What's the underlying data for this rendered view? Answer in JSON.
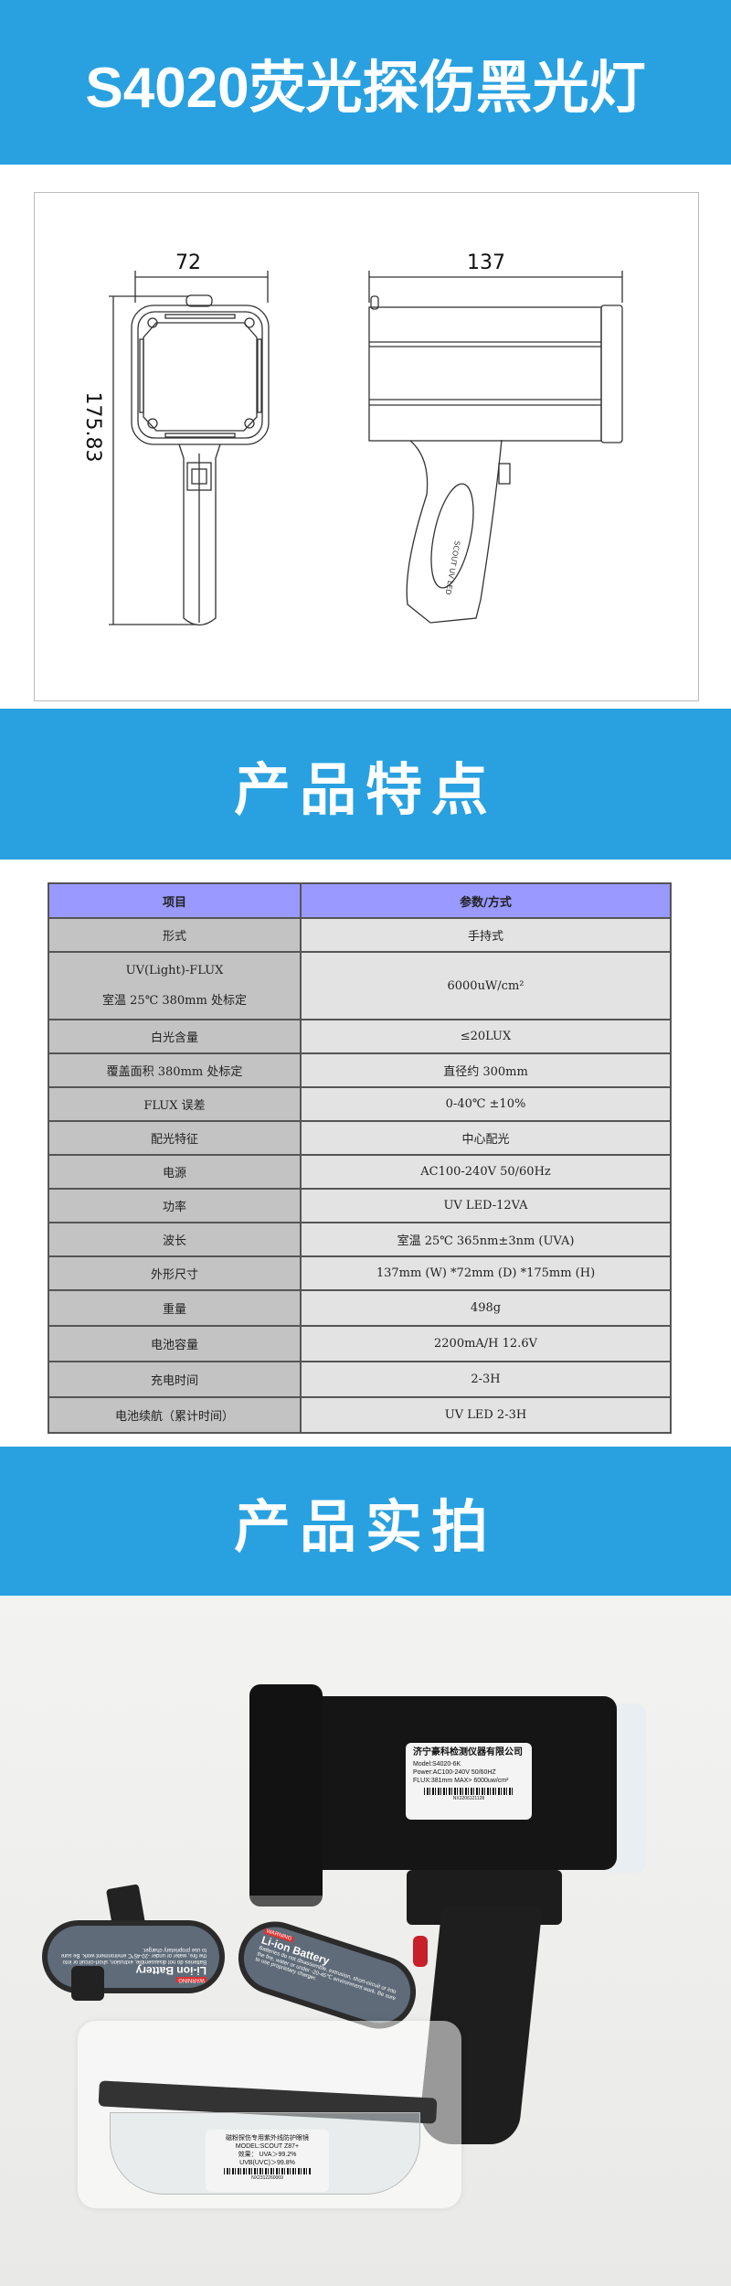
{
  "header": {
    "title": "S4020荧光探伤黑光灯"
  },
  "drawing": {
    "front_width": "72",
    "side_width": "137",
    "height": "175.83"
  },
  "features_banner": {
    "title": "产品特点"
  },
  "spec_table": {
    "headers": [
      "项目",
      "参数/方式"
    ],
    "rows": [
      {
        "item": "形式",
        "value": "手持式"
      },
      {
        "item": "UV(Light)-FLUX",
        "item2": "室温 25℃  380mm 处标定",
        "value": "6000uW/cm²"
      },
      {
        "item": "白光含量",
        "value": "≤20LUX"
      },
      {
        "item": "覆盖面积 380mm 处标定",
        "value": "直径约 300mm"
      },
      {
        "item": "FLUX 误差",
        "value": "0-40℃  ±10%"
      },
      {
        "item": "配光特征",
        "value": "中心配光"
      },
      {
        "item": "电源",
        "value": "AC100-240V  50/60Hz"
      },
      {
        "item": "功率",
        "value": "UV LED-12VA"
      },
      {
        "item": "波长",
        "value": "室温 25℃   365nm±3nm (UVA)"
      },
      {
        "item": "外形尺寸",
        "value": "137mm (W) *72mm (D) *175mm (H)"
      },
      {
        "item": "重量",
        "value": "498g"
      },
      {
        "item": "电池容量",
        "value": "2200mA/H 12.6V"
      },
      {
        "item": "充电时间",
        "value": "2-3H"
      },
      {
        "item": "电池续航（累计时间）",
        "value": "UV LED  2-3H"
      }
    ]
  },
  "photo_banner": {
    "title": "产品实拍"
  },
  "photo": {
    "lamp_label": {
      "company": "济宁豪科检测仪器有限公司",
      "model": "Model:S4020-6K",
      "power": "Power:AC100-240V 50/60HZ",
      "flux": "FLUX:381mm MAX> 6000uw/cm²",
      "serial": "NX2206121128"
    },
    "battery": {
      "title": "Li-ion Battery",
      "warning": "WARNING",
      "text": "Batteries do not disassemble, extrusion, short-circuit or into the fire, water or under -20-45℃ environment work. Be sure to use proprietary charger."
    },
    "goggles_label": {
      "title": "磁粉探伤专用紫外线防护眼镜",
      "model": "MODEL:SCOUT Z87+",
      "uva": "效果： UVA＞99.2%",
      "uvb": "UVB(UVC)＞99.8%",
      "serial": "NX2312260069"
    }
  },
  "colors": {
    "banner": "#29a1e1",
    "table_header": "#9999ff",
    "table_key": "#c3c3c3",
    "table_value": "#e3e3e3"
  }
}
